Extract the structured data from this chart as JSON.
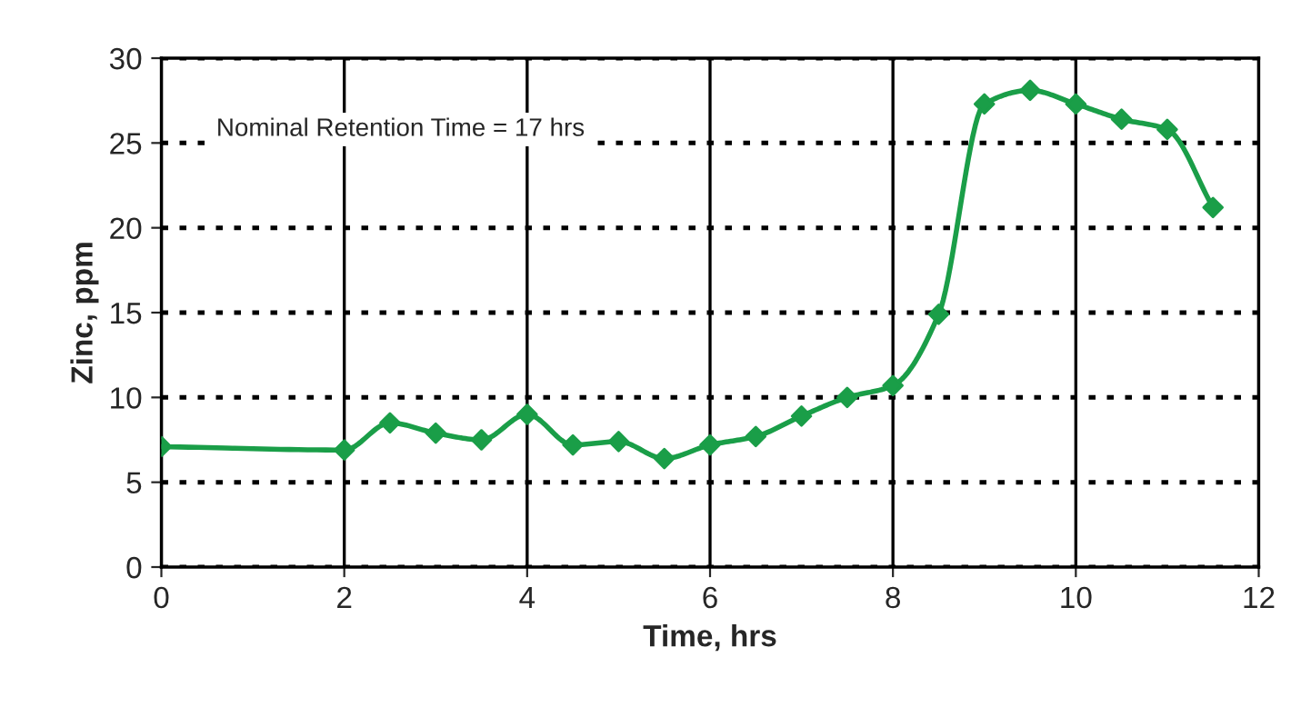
{
  "chart_data": {
    "type": "line",
    "xlabel": "Time, hrs",
    "ylabel": "Zinc, ppm",
    "x": [
      0,
      2,
      2.5,
      3,
      3.5,
      4,
      4.5,
      5,
      5.5,
      6,
      6.5,
      7,
      7.5,
      8,
      8.5,
      9,
      9.5,
      10,
      10.5,
      11,
      11.5
    ],
    "series": [
      {
        "color": "#1a9e48",
        "values": [
          7.1,
          6.9,
          8.5,
          7.9,
          7.5,
          9.0,
          7.2,
          7.4,
          6.4,
          7.2,
          7.7,
          8.9,
          10.0,
          10.7,
          14.9,
          27.3,
          28.1,
          27.3,
          26.4,
          25.8,
          21.2
        ]
      }
    ],
    "xlim": [
      0,
      12
    ],
    "xticks": [
      0,
      2,
      4,
      6,
      8,
      10,
      12
    ],
    "ylim": [
      0,
      30
    ],
    "yticks": [
      0,
      5,
      10,
      15,
      20,
      25,
      30
    ],
    "grid": true,
    "marker": "diamond",
    "line_style": "solid",
    "annotations": [
      "Nominal Retention Time = 17 hrs"
    ]
  }
}
